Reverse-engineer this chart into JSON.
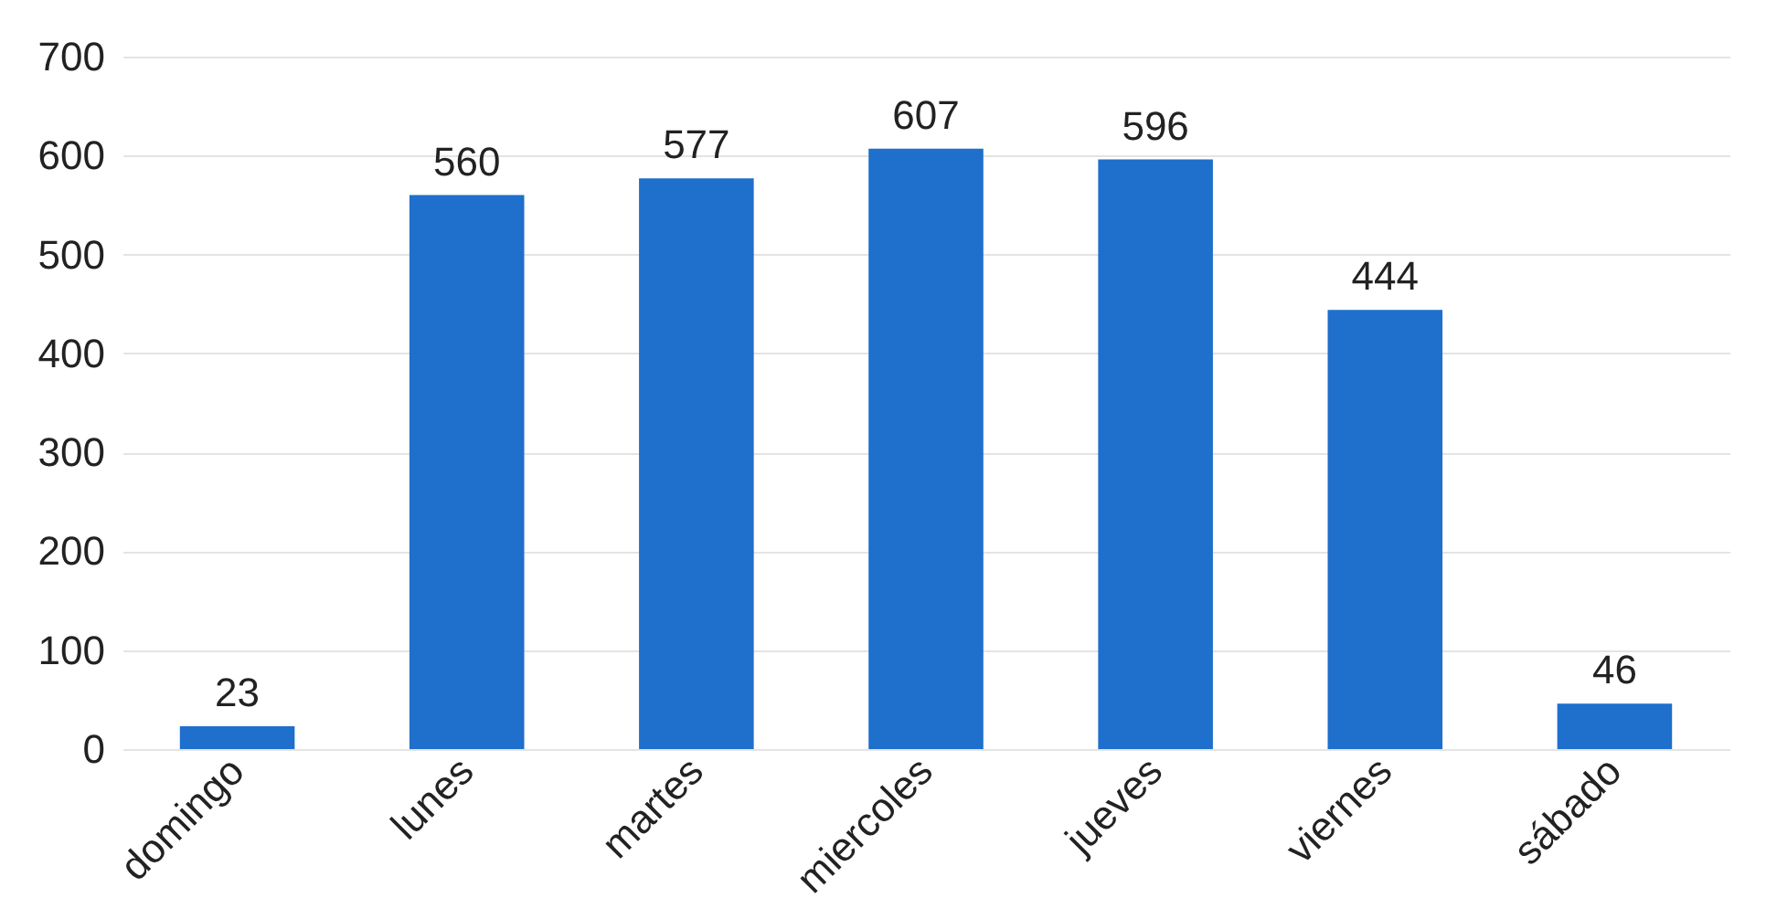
{
  "chart_data": {
    "type": "bar",
    "categories": [
      "domingo",
      "lunes",
      "martes",
      "miercoles",
      "jueves",
      "viernes",
      "sábado"
    ],
    "values": [
      23,
      560,
      577,
      607,
      596,
      444,
      46
    ],
    "color": "#1f6fcc",
    "ylim": [
      0,
      700
    ],
    "yticks": [
      0,
      100,
      200,
      300,
      400,
      500,
      600,
      700
    ],
    "grid": "y",
    "data_labels": true
  }
}
